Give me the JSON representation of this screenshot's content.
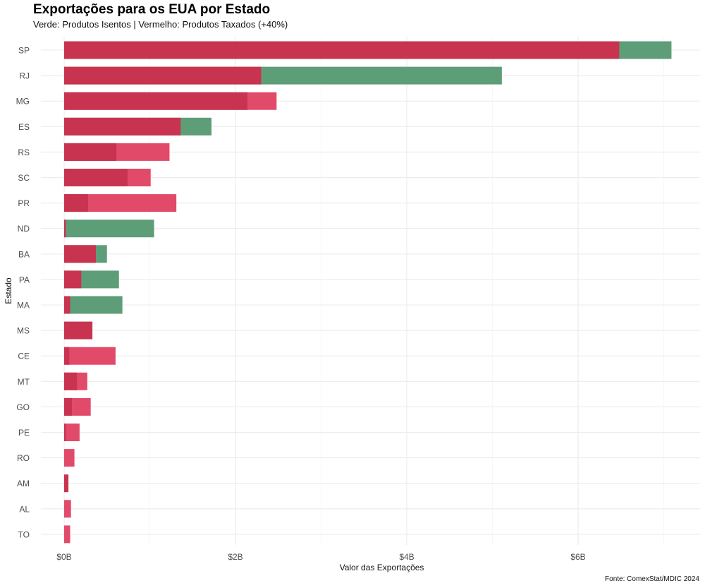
{
  "title": "Exportações para os EUA por Estado",
  "subtitle": "Verde: Produtos Isentos | Vermelho: Produtos Taxados (+40%)",
  "caption": "Fonte: ComexStat/MDIC 2024",
  "colors": {
    "taxados_dark": "#c8334f",
    "taxados_light": "#e24a6a",
    "isentos": "#5d9e78",
    "grid": "#ebebeb"
  },
  "chart_data": {
    "type": "bar",
    "orientation": "horizontal",
    "stacked": "overlay",
    "title": "Exportações para os EUA por Estado",
    "subtitle": "Verde: Produtos Isentos | Vermelho: Produtos Taxados (+40%)",
    "xlabel": "Valor das Exportações",
    "ylabel": "Estado",
    "x_ticks": [
      "$0B",
      "$2B",
      "$4B",
      "$6B"
    ],
    "x_tick_values": [
      0,
      2,
      4,
      6
    ],
    "xlim": [
      0,
      7.3
    ],
    "unit": "billions USD",
    "grid": true,
    "categories": [
      "SP",
      "RJ",
      "MG",
      "ES",
      "RS",
      "SC",
      "PR",
      "ND",
      "BA",
      "PA",
      "MA",
      "MS",
      "CE",
      "MT",
      "GO",
      "PE",
      "RO",
      "AM",
      "AL",
      "TO"
    ],
    "series": [
      {
        "key": "taxados",
        "color": "#c8334f",
        "values": [
          6.48,
          2.3,
          2.14,
          1.36,
          0.61,
          0.74,
          0.28,
          0.02,
          0.37,
          0.2,
          0.07,
          0.33,
          0.06,
          0.15,
          0.09,
          0.02,
          0.0,
          0.05,
          0.0,
          0.0
        ]
      },
      {
        "key": "isentos",
        "color": "#5d9e78",
        "values": [
          7.09,
          5.11,
          0.0,
          1.72,
          0.0,
          0.0,
          0.0,
          1.05,
          0.5,
          0.64,
          0.68,
          0.0,
          0.0,
          0.0,
          0.0,
          0.0,
          0.0,
          0.0,
          0.0,
          0.0
        ]
      },
      {
        "key": "taxados_extra",
        "color": "#e24a6a",
        "values": [
          0.0,
          0.0,
          2.48,
          0.0,
          1.23,
          1.01,
          1.31,
          0.0,
          0.0,
          0.0,
          0.0,
          0.0,
          0.6,
          0.27,
          0.31,
          0.18,
          0.12,
          0.0,
          0.08,
          0.07
        ]
      }
    ]
  }
}
